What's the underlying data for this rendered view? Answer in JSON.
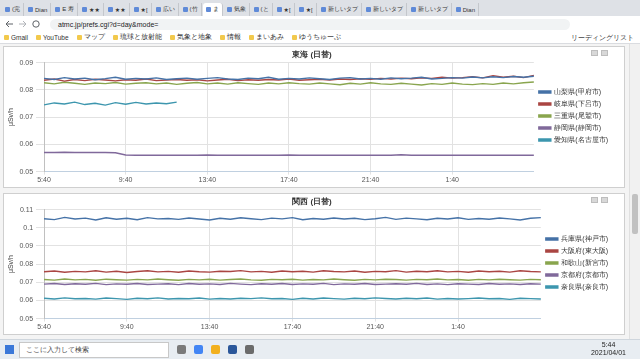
{
  "browser": {
    "tabs": [
      "(完",
      "Dian",
      "E 寿",
      "★★",
      "★★",
      "★[",
      "広い",
      "(竹",
      "ま",
      "気象",
      "(と",
      "★[",
      "★[",
      "新しいタブ",
      "新しいタブ",
      "新しいタブ",
      "Dian"
    ],
    "address": "atmc.jp/prefs.cgi?d=day&mode=",
    "bookmarks": [
      "Gmail",
      "YouTube",
      "マップ",
      "琉球と放射能",
      "気象と地象",
      "情報",
      "まいあみ",
      "ゆうちゅーぶ"
    ],
    "reading_list": "リーディングリスト"
  },
  "chart_data": [
    {
      "type": "line",
      "title": "東海 (日替)",
      "y_label": "μSv/h",
      "categories": [
        "5:40",
        null,
        null,
        null,
        null,
        null,
        null,
        null,
        "9:40",
        null,
        null,
        null,
        null,
        null,
        null,
        null,
        "13:40",
        null,
        null,
        null,
        null,
        null,
        null,
        null,
        "17:40",
        null,
        null,
        null,
        null,
        null,
        null,
        null,
        "21:40",
        null,
        null,
        null,
        null,
        null,
        null,
        null,
        "1:40",
        null,
        null,
        null,
        null,
        null,
        null,
        null,
        null
      ],
      "series": [
        {
          "name": "山梨県(甲府市)",
          "color": "#4572a7",
          "values": [
            0.0842,
            0.0838,
            0.0845,
            0.084,
            0.0843,
            0.0837,
            0.0841,
            0.0846,
            0.0839,
            0.0842,
            0.084,
            0.0844,
            0.0838,
            0.0841,
            0.0843,
            0.0839,
            0.0842,
            0.0845,
            0.084,
            0.0838,
            0.0843,
            0.0841,
            0.0846,
            0.0839,
            0.0842,
            0.084,
            0.0844,
            0.0841,
            0.0838,
            0.0843,
            0.0845,
            0.084,
            0.0842,
            0.0839,
            0.0844,
            0.0841,
            0.0843,
            0.0846,
            0.084,
            0.0842,
            0.0845,
            0.0843,
            0.0847,
            0.0844,
            0.0848,
            0.0845,
            0.0849,
            0.0846,
            0.085
          ]
        },
        {
          "name": "岐阜県(下呂市)",
          "color": "#aa4643",
          "values": [
            0.0835,
            0.084,
            0.0832,
            0.0838,
            0.0834,
            0.0839,
            0.0836,
            0.0833,
            0.0837,
            0.0835,
            0.084,
            0.0834,
            0.0836,
            0.0838,
            0.0835,
            0.0837,
            0.0833,
            0.0836,
            0.0839,
            0.0834,
            0.0837,
            0.0835,
            0.0838,
            0.0836,
            0.084,
            0.0835,
            0.0837,
            0.0839,
            0.0836,
            0.084,
            0.0838,
            0.0841,
            0.0839,
            0.0842,
            0.084,
            0.0843,
            0.0841,
            0.0844,
            0.0842,
            0.0846,
            0.0843,
            0.0845,
            0.0848,
            0.0844,
            0.0852,
            0.0846,
            0.085,
            0.0845,
            0.0853
          ]
        },
        {
          "name": "三重県(尾鷲市)",
          "color": "#89a54e",
          "values": [
            0.0826,
            0.0822,
            0.0828,
            0.0824,
            0.082,
            0.0825,
            0.0823,
            0.0827,
            0.0821,
            0.0824,
            0.0826,
            0.0822,
            0.0825,
            0.082,
            0.0824,
            0.0827,
            0.0822,
            0.0825,
            0.0821,
            0.0826,
            0.0823,
            0.082,
            0.0825,
            0.0822,
            0.0826,
            0.0823,
            0.0821,
            0.0825,
            0.0822,
            0.0819,
            0.0824,
            0.0821,
            0.0826,
            0.0822,
            0.082,
            0.0824,
            0.0821,
            0.0818,
            0.0823,
            0.082,
            0.0825,
            0.0821,
            0.0819,
            0.0823,
            0.082,
            0.0825,
            0.0822,
            0.0826,
            0.0829
          ]
        },
        {
          "name": "静岡県(静岡市)",
          "color": "#80699b",
          "values": [
            0.057,
            0.057,
            0.0571,
            0.057,
            0.057,
            0.057,
            0.057,
            0.0569,
            0.0561,
            0.056,
            0.056,
            0.056,
            0.056,
            0.056,
            0.056,
            0.056,
            0.0561,
            0.056,
            0.056,
            0.056,
            0.056,
            0.056,
            0.056,
            0.056,
            0.0561,
            0.056,
            0.056,
            0.056,
            0.056,
            0.056,
            0.056,
            0.056,
            0.056,
            0.056,
            0.056,
            0.0562,
            0.056,
            0.056,
            0.056,
            0.056,
            0.056,
            0.056,
            0.056,
            0.056,
            0.056,
            0.056,
            0.056,
            0.056,
            0.056
          ]
        },
        {
          "name": "愛知県(名古屋市)",
          "color": "#3d96ae",
          "values": [
            0.0745,
            0.0752,
            0.0748,
            0.0755,
            0.0746,
            0.0751,
            0.0744,
            0.0753,
            0.0747,
            0.0754,
            0.0748,
            0.0752,
            0.0749,
            0.0755,
            null,
            null,
            null,
            null,
            null,
            null,
            null,
            null,
            null,
            null,
            null,
            null,
            null,
            null,
            null,
            null,
            null,
            null,
            null,
            null,
            null,
            null,
            null,
            null,
            null,
            null,
            null,
            null,
            null,
            null,
            null,
            null,
            null,
            null,
            null
          ]
        }
      ],
      "ylim": [
        0.05,
        0.09
      ],
      "yticks": [
        0.05,
        0.06,
        0.07,
        0.08,
        0.09
      ],
      "grid": true,
      "legend": "right"
    },
    {
      "type": "line",
      "title": "関西 (日替)",
      "y_label": "μSv/h",
      "categories": [
        "5:40",
        null,
        null,
        null,
        null,
        null,
        null,
        null,
        "9:40",
        null,
        null,
        null,
        null,
        null,
        null,
        null,
        "13:40",
        null,
        null,
        null,
        null,
        null,
        null,
        null,
        "17:40",
        null,
        null,
        null,
        null,
        null,
        null,
        null,
        "21:40",
        null,
        null,
        null,
        null,
        null,
        null,
        null,
        "1:40",
        null,
        null,
        null,
        null,
        null,
        null,
        null,
        null
      ],
      "series": [
        {
          "name": "兵庫県(神戸市)",
          "color": "#4572a7",
          "values": [
            0.105,
            0.1045,
            0.1057,
            0.1048,
            0.1053,
            0.1043,
            0.1055,
            0.1047,
            0.1052,
            0.1044,
            0.1056,
            0.1049,
            0.1051,
            0.1046,
            0.1054,
            0.1048,
            0.1043,
            0.1052,
            0.1047,
            0.1055,
            0.105,
            0.1045,
            0.1053,
            0.1049,
            0.1056,
            0.1044,
            0.1051,
            0.1047,
            0.1054,
            0.1048,
            0.1052,
            0.1045,
            0.105,
            0.1057,
            0.1046,
            0.1053,
            0.1049,
            0.1044,
            0.1052,
            0.1048,
            0.1055,
            0.1046,
            0.1051,
            0.1047,
            0.1054,
            0.1049,
            0.1043,
            0.1052,
            0.1056
          ]
        },
        {
          "name": "大阪府(東大阪)",
          "color": "#aa4643",
          "values": [
            0.0758,
            0.0762,
            0.0755,
            0.076,
            0.0757,
            0.0763,
            0.0756,
            0.0761,
            0.0754,
            0.0759,
            0.0763,
            0.0757,
            0.076,
            0.0755,
            0.0762,
            0.0758,
            0.0756,
            0.0761,
            0.0759,
            0.0764,
            0.0757,
            0.076,
            0.0755,
            0.0762,
            0.0758,
            0.0761,
            0.0756,
            0.0763,
            0.0759,
            0.0757,
            0.0762,
            0.0755,
            0.076,
            0.0758,
            0.0764,
            0.0756,
            0.0761,
            0.0758,
            0.0763,
            0.0757,
            0.076,
            0.0755,
            0.0762,
            0.0758,
            0.0761,
            0.0756,
            0.0763,
            0.0759,
            0.0757
          ]
        },
        {
          "name": "和歌山(新宮市)",
          "color": "#89a54e",
          "values": [
            0.0715,
            0.0712,
            0.0718,
            0.0713,
            0.0716,
            0.0711,
            0.0717,
            0.0714,
            0.0712,
            0.0716,
            0.0713,
            0.0718,
            0.0714,
            0.0711,
            0.0716,
            0.0713,
            0.0717,
            0.0712,
            0.0715,
            0.0718,
            0.0713,
            0.0711,
            0.0716,
            0.0714,
            0.0717,
            0.0712,
            0.0715,
            0.0713,
            0.0718,
            0.0714,
            0.0711,
            0.0716,
            0.0713,
            0.0717,
            0.0715,
            0.0712,
            0.0716,
            0.0714,
            0.0718,
            0.0713,
            0.0715,
            0.0711,
            0.0716,
            0.0713,
            0.0717,
            0.0714,
            0.0712,
            0.0716,
            0.0714
          ]
        },
        {
          "name": "京都府(京都市)",
          "color": "#80699b",
          "values": [
            0.069,
            0.0693,
            0.0688,
            0.0692,
            0.0689,
            0.0694,
            0.0687,
            0.0691,
            0.0689,
            0.0693,
            0.0688,
            0.069,
            0.0692,
            0.0687,
            0.0693,
            0.0689,
            0.0691,
            0.0688,
            0.0694,
            0.069,
            0.0687,
            0.0692,
            0.0689,
            0.0693,
            0.0688,
            0.0691,
            0.0689,
            0.0694,
            0.0687,
            0.0691,
            0.0689,
            0.0693,
            0.0688,
            0.069,
            0.0692,
            0.0689,
            0.0694,
            0.0688,
            0.0691,
            0.0687,
            0.0692,
            0.069,
            0.0688,
            0.0693,
            0.0689,
            0.0691,
            0.0688,
            0.0692,
            0.069
          ]
        },
        {
          "name": "奈良県(奈良市)",
          "color": "#3d96ae",
          "values": [
            0.0612,
            0.0608,
            0.0614,
            0.0609,
            0.0611,
            0.0607,
            0.0613,
            0.061,
            0.0606,
            0.0612,
            0.0609,
            0.0614,
            0.0608,
            0.0611,
            0.0609,
            0.0613,
            0.0607,
            0.0611,
            0.0608,
            0.0612,
            0.061,
            0.0614,
            0.0609,
            0.0611,
            0.0606,
            0.0612,
            0.0608,
            0.0613,
            0.061,
            0.0607,
            0.0612,
            0.0609,
            0.0614,
            0.0611,
            0.0608,
            0.0612,
            0.0609,
            0.0613,
            0.0607,
            0.0611,
            0.0608,
            0.061,
            0.0613,
            0.0609,
            0.0611,
            0.0606,
            0.0612,
            0.061,
            0.0608
          ]
        }
      ],
      "ylim": [
        0.05,
        0.11
      ],
      "yticks": [
        0.05,
        0.06,
        0.07,
        0.08,
        0.09,
        0.1,
        0.11
      ],
      "grid": true,
      "legend": "right"
    }
  ],
  "taskbar": {
    "search": "ここに入力して検索",
    "time": "5:44",
    "date": "2021/04/01"
  }
}
